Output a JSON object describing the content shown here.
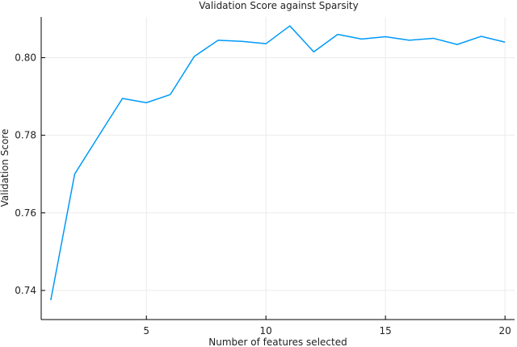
{
  "chart_data": {
    "type": "line",
    "title": "Validation Score against Sparsity",
    "xlabel": "Number of features selected",
    "ylabel": "Validation Score",
    "xlim": [
      0.6,
      20.4
    ],
    "ylim": [
      0.7325,
      0.8105
    ],
    "xticks": [
      5,
      10,
      15,
      20
    ],
    "yticks": [
      0.74,
      0.76,
      0.78,
      0.8
    ],
    "ytick_labels": [
      "0.74",
      "0.76",
      "0.78",
      "0.80"
    ],
    "grid": true,
    "legend": "none",
    "series_color": "#009af9",
    "series": [
      {
        "x": [
          1,
          2,
          3,
          4,
          5,
          6,
          7,
          8,
          9,
          10,
          11,
          12,
          13,
          14,
          15,
          16,
          17,
          18,
          19,
          20
        ],
        "values": [
          0.7375,
          0.77,
          0.7798,
          0.7895,
          0.7884,
          0.7905,
          0.8003,
          0.8045,
          0.8042,
          0.8036,
          0.8082,
          0.8015,
          0.806,
          0.8048,
          0.8054,
          0.8045,
          0.805,
          0.8034,
          0.8055,
          0.804
        ]
      }
    ]
  }
}
